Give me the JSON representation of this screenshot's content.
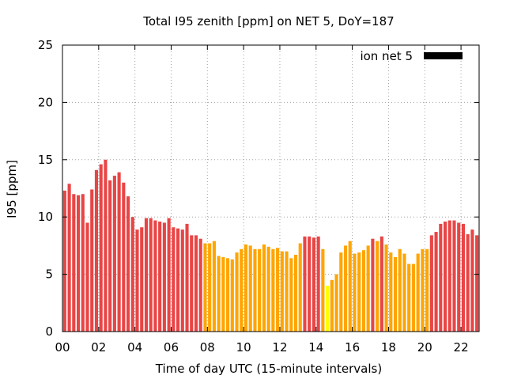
{
  "chart_data": {
    "type": "bar",
    "title": "Total I95 zenith [ppm] on NET 5, DoY=187",
    "xlabel": "Time of day UTC (15-minute intervals)",
    "ylabel": "I95 [ppm]",
    "xlim": [
      0,
      23
    ],
    "ylim": [
      0,
      25
    ],
    "yticks": [
      0,
      5,
      10,
      15,
      20,
      25
    ],
    "xticks": [
      "00",
      "02",
      "04",
      "06",
      "08",
      "10",
      "12",
      "14",
      "16",
      "18",
      "20",
      "22"
    ],
    "bar_interval_hours": 0.25,
    "grid": true,
    "legend": {
      "label": "ion net 5",
      "color": "#000000",
      "placement": "top-right"
    },
    "category_colors": {
      "red": "#e84545",
      "orange": "#ffa500",
      "yellow": "#ffff00"
    },
    "series": [
      {
        "values": [
          12.3,
          12.9,
          12.0,
          11.9,
          12.0,
          9.5,
          12.4,
          14.1,
          14.6,
          15.0,
          13.2,
          13.6,
          13.9,
          13.0,
          11.8,
          10.0,
          8.9,
          9.1,
          9.9,
          9.9,
          9.7,
          9.6,
          9.5,
          9.9,
          9.1,
          9.0,
          8.9,
          9.4,
          8.4,
          8.4,
          8.1,
          7.7,
          7.7,
          7.9,
          6.6,
          6.5,
          6.4,
          6.3,
          6.9,
          7.2,
          7.6,
          7.5,
          7.2,
          7.2,
          7.6,
          7.4,
          7.2,
          7.3,
          7.0,
          7.0,
          6.4,
          6.7,
          7.7,
          8.3,
          8.3,
          8.2,
          8.3,
          7.2,
          4.0,
          4.5,
          5.0,
          6.9,
          7.5,
          7.9,
          6.8,
          6.9,
          7.1,
          7.5,
          8.1,
          7.9,
          8.3,
          7.6,
          6.9,
          6.5,
          7.2,
          6.8,
          5.9,
          5.9,
          6.8,
          7.2,
          7.2,
          8.4,
          8.7,
          9.4,
          9.6,
          9.7,
          9.7,
          9.5,
          9.4,
          8.5,
          8.9,
          8.4
        ],
        "colors": [
          "red",
          "red",
          "red",
          "red",
          "red",
          "red",
          "red",
          "red",
          "red",
          "red",
          "red",
          "red",
          "red",
          "red",
          "red",
          "red",
          "red",
          "red",
          "red",
          "red",
          "red",
          "red",
          "red",
          "red",
          "red",
          "red",
          "red",
          "red",
          "red",
          "red",
          "red",
          "orange",
          "orange",
          "orange",
          "orange",
          "orange",
          "orange",
          "orange",
          "orange",
          "orange",
          "orange",
          "orange",
          "orange",
          "orange",
          "orange",
          "orange",
          "orange",
          "orange",
          "orange",
          "orange",
          "orange",
          "orange",
          "orange",
          "red",
          "red",
          "red",
          "red",
          "orange",
          "yellow",
          "orange",
          "orange",
          "orange",
          "orange",
          "orange",
          "orange",
          "orange",
          "orange",
          "orange",
          "red",
          "orange",
          "red",
          "orange",
          "orange",
          "orange",
          "orange",
          "orange",
          "orange",
          "orange",
          "orange",
          "orange",
          "orange",
          "red",
          "red",
          "red",
          "red",
          "red",
          "red",
          "red",
          "red",
          "red",
          "red",
          "red"
        ]
      }
    ]
  }
}
